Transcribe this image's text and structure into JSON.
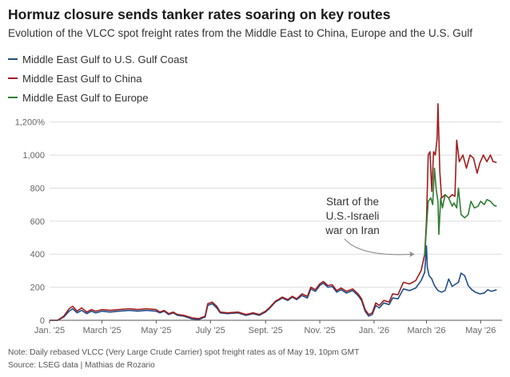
{
  "title": "Hormuz closure sends tanker rates soaring on key routes",
  "subtitle": "Evolution of the VLCC spot freight rates from the Middle East to China, Europe and the U.S. Gulf",
  "note": "Note: Daily rebased VLCC (Very Large Crude Carrier) spot freight rates as of May 19, 10pm GMT",
  "source": "Source: LSEG data | Mathias de Rozario",
  "colors": {
    "us": "#1f4e8c",
    "china": "#a01c1c",
    "europe": "#2e7d32",
    "grid": "#dddddd",
    "axis": "#555555",
    "annotation": "#888888"
  },
  "chart_data": {
    "type": "line",
    "title": "Hormuz closure sends tanker rates soaring on key routes",
    "ylabel": "",
    "xlabel": "",
    "ylim": [
      0,
      1300
    ],
    "xlim": [
      "2025-01-01",
      "2026-05-25"
    ],
    "grid": true,
    "legend_position": "top-left",
    "y_ticks": [
      {
        "value": 0,
        "label": "0"
      },
      {
        "value": 200,
        "label": "200"
      },
      {
        "value": 400,
        "label": "400"
      },
      {
        "value": 600,
        "label": "600"
      },
      {
        "value": 800,
        "label": "800"
      },
      {
        "value": 1000,
        "label": "1,000"
      },
      {
        "value": 1200,
        "label": "1,200%"
      }
    ],
    "x_ticks": [
      {
        "date": "2025-01-01",
        "label": "Jan. '25"
      },
      {
        "date": "2025-03-01",
        "label": "March '25"
      },
      {
        "date": "2025-05-01",
        "label": "May '25"
      },
      {
        "date": "2025-07-01",
        "label": "July '25"
      },
      {
        "date": "2025-09-01",
        "label": "Sept. '25"
      },
      {
        "date": "2025-11-01",
        "label": "Nov. '25"
      },
      {
        "date": "2026-01-01",
        "label": "Jan. '26"
      },
      {
        "date": "2026-03-01",
        "label": "March '26"
      },
      {
        "date": "2026-05-01",
        "label": "May '26"
      }
    ],
    "annotation": {
      "lines": [
        "Start of the",
        "U.S.-Israeli",
        "war on Iran"
      ],
      "date": "2026-02-28",
      "value": 400
    },
    "series": [
      {
        "name": "Middle East Gulf to U.S. Gulf Coast",
        "key": "us",
        "points": [
          [
            "2025-01-01",
            0
          ],
          [
            "2025-01-10",
            0
          ],
          [
            "2025-01-17",
            20
          ],
          [
            "2025-01-23",
            55
          ],
          [
            "2025-01-27",
            70
          ],
          [
            "2025-02-01",
            45
          ],
          [
            "2025-02-06",
            60
          ],
          [
            "2025-02-12",
            40
          ],
          [
            "2025-02-17",
            55
          ],
          [
            "2025-02-22",
            45
          ],
          [
            "2025-03-01",
            55
          ],
          [
            "2025-03-10",
            50
          ],
          [
            "2025-03-20",
            55
          ],
          [
            "2025-04-01",
            60
          ],
          [
            "2025-04-10",
            55
          ],
          [
            "2025-04-20",
            60
          ],
          [
            "2025-05-01",
            55
          ],
          [
            "2025-05-05",
            45
          ],
          [
            "2025-05-10",
            55
          ],
          [
            "2025-05-15",
            35
          ],
          [
            "2025-05-20",
            45
          ],
          [
            "2025-05-25",
            30
          ],
          [
            "2025-06-01",
            25
          ],
          [
            "2025-06-10",
            8
          ],
          [
            "2025-06-18",
            5
          ],
          [
            "2025-06-25",
            20
          ],
          [
            "2025-06-28",
            90
          ],
          [
            "2025-07-03",
            100
          ],
          [
            "2025-07-08",
            75
          ],
          [
            "2025-07-12",
            45
          ],
          [
            "2025-07-20",
            40
          ],
          [
            "2025-08-01",
            45
          ],
          [
            "2025-08-10",
            30
          ],
          [
            "2025-08-18",
            40
          ],
          [
            "2025-08-25",
            30
          ],
          [
            "2025-09-01",
            50
          ],
          [
            "2025-09-06",
            75
          ],
          [
            "2025-09-12",
            110
          ],
          [
            "2025-09-20",
            135
          ],
          [
            "2025-09-26",
            120
          ],
          [
            "2025-10-01",
            140
          ],
          [
            "2025-10-06",
            125
          ],
          [
            "2025-10-12",
            150
          ],
          [
            "2025-10-18",
            135
          ],
          [
            "2025-10-22",
            190
          ],
          [
            "2025-10-27",
            175
          ],
          [
            "2025-11-01",
            210
          ],
          [
            "2025-11-05",
            225
          ],
          [
            "2025-11-10",
            200
          ],
          [
            "2025-11-15",
            205
          ],
          [
            "2025-11-20",
            170
          ],
          [
            "2025-11-25",
            185
          ],
          [
            "2025-12-01",
            165
          ],
          [
            "2025-12-08",
            180
          ],
          [
            "2025-12-14",
            150
          ],
          [
            "2025-12-18",
            120
          ],
          [
            "2025-12-22",
            55
          ],
          [
            "2025-12-26",
            25
          ],
          [
            "2025-12-30",
            35
          ],
          [
            "2026-01-03",
            90
          ],
          [
            "2026-01-07",
            75
          ],
          [
            "2026-01-12",
            105
          ],
          [
            "2026-01-18",
            95
          ],
          [
            "2026-01-22",
            135
          ],
          [
            "2026-01-28",
            130
          ],
          [
            "2026-02-03",
            190
          ],
          [
            "2026-02-10",
            180
          ],
          [
            "2026-02-17",
            195
          ],
          [
            "2026-02-23",
            240
          ],
          [
            "2026-02-27",
            290
          ],
          [
            "2026-03-01",
            450
          ],
          [
            "2026-03-02",
            320
          ],
          [
            "2026-03-04",
            270
          ],
          [
            "2026-03-07",
            250
          ],
          [
            "2026-03-10",
            210
          ],
          [
            "2026-03-14",
            180
          ],
          [
            "2026-03-18",
            170
          ],
          [
            "2026-03-22",
            180
          ],
          [
            "2026-03-26",
            250
          ],
          [
            "2026-03-30",
            205
          ],
          [
            "2026-04-03",
            220
          ],
          [
            "2026-04-06",
            230
          ],
          [
            "2026-04-09",
            285
          ],
          [
            "2026-04-13",
            270
          ],
          [
            "2026-04-17",
            210
          ],
          [
            "2026-04-21",
            185
          ],
          [
            "2026-04-25",
            170
          ],
          [
            "2026-04-30",
            160
          ],
          [
            "2026-05-05",
            165
          ],
          [
            "2026-05-09",
            185
          ],
          [
            "2026-05-13",
            175
          ],
          [
            "2026-05-19",
            185
          ]
        ]
      },
      {
        "name": "Middle East Gulf to China",
        "key": "china",
        "points": [
          [
            "2025-01-01",
            0
          ],
          [
            "2025-01-10",
            0
          ],
          [
            "2025-01-17",
            25
          ],
          [
            "2025-01-23",
            70
          ],
          [
            "2025-01-27",
            85
          ],
          [
            "2025-02-01",
            55
          ],
          [
            "2025-02-06",
            75
          ],
          [
            "2025-02-12",
            50
          ],
          [
            "2025-02-17",
            65
          ],
          [
            "2025-02-22",
            55
          ],
          [
            "2025-03-01",
            65
          ],
          [
            "2025-03-10",
            60
          ],
          [
            "2025-03-20",
            65
          ],
          [
            "2025-04-01",
            70
          ],
          [
            "2025-04-10",
            65
          ],
          [
            "2025-04-20",
            70
          ],
          [
            "2025-05-01",
            65
          ],
          [
            "2025-05-05",
            50
          ],
          [
            "2025-05-10",
            60
          ],
          [
            "2025-05-15",
            40
          ],
          [
            "2025-05-20",
            50
          ],
          [
            "2025-05-25",
            35
          ],
          [
            "2025-06-01",
            30
          ],
          [
            "2025-06-10",
            15
          ],
          [
            "2025-06-18",
            10
          ],
          [
            "2025-06-25",
            25
          ],
          [
            "2025-06-28",
            100
          ],
          [
            "2025-07-03",
            110
          ],
          [
            "2025-07-08",
            85
          ],
          [
            "2025-07-12",
            50
          ],
          [
            "2025-07-20",
            45
          ],
          [
            "2025-08-01",
            50
          ],
          [
            "2025-08-10",
            35
          ],
          [
            "2025-08-18",
            45
          ],
          [
            "2025-08-25",
            35
          ],
          [
            "2025-09-01",
            55
          ],
          [
            "2025-09-06",
            80
          ],
          [
            "2025-09-12",
            115
          ],
          [
            "2025-09-20",
            140
          ],
          [
            "2025-09-26",
            125
          ],
          [
            "2025-10-01",
            145
          ],
          [
            "2025-10-06",
            130
          ],
          [
            "2025-10-12",
            160
          ],
          [
            "2025-10-18",
            145
          ],
          [
            "2025-10-22",
            200
          ],
          [
            "2025-10-27",
            185
          ],
          [
            "2025-11-01",
            220
          ],
          [
            "2025-11-05",
            235
          ],
          [
            "2025-11-10",
            210
          ],
          [
            "2025-11-15",
            215
          ],
          [
            "2025-11-20",
            180
          ],
          [
            "2025-11-25",
            195
          ],
          [
            "2025-12-01",
            175
          ],
          [
            "2025-12-08",
            190
          ],
          [
            "2025-12-14",
            160
          ],
          [
            "2025-12-18",
            130
          ],
          [
            "2025-12-22",
            65
          ],
          [
            "2025-12-26",
            35
          ],
          [
            "2025-12-30",
            45
          ],
          [
            "2026-01-03",
            105
          ],
          [
            "2026-01-07",
            90
          ],
          [
            "2026-01-12",
            120
          ],
          [
            "2026-01-18",
            110
          ],
          [
            "2026-01-22",
            160
          ],
          [
            "2026-01-28",
            155
          ],
          [
            "2026-02-03",
            230
          ],
          [
            "2026-02-10",
            220
          ],
          [
            "2026-02-17",
            240
          ],
          [
            "2026-02-23",
            300
          ],
          [
            "2026-02-27",
            400
          ],
          [
            "2026-03-01",
            600
          ],
          [
            "2026-03-03",
            1000
          ],
          [
            "2026-03-05",
            1020
          ],
          [
            "2026-03-07",
            780
          ],
          [
            "2026-03-09",
            1020
          ],
          [
            "2026-03-11",
            1000
          ],
          [
            "2026-03-13",
            1100
          ],
          [
            "2026-03-14",
            1310
          ],
          [
            "2026-03-16",
            900
          ],
          [
            "2026-03-18",
            740
          ],
          [
            "2026-03-22",
            760
          ],
          [
            "2026-03-26",
            740
          ],
          [
            "2026-03-30",
            760
          ],
          [
            "2026-04-02",
            750
          ],
          [
            "2026-04-04",
            1090
          ],
          [
            "2026-04-07",
            960
          ],
          [
            "2026-04-11",
            1000
          ],
          [
            "2026-04-15",
            920
          ],
          [
            "2026-04-19",
            1000
          ],
          [
            "2026-04-23",
            980
          ],
          [
            "2026-04-27",
            890
          ],
          [
            "2026-04-30",
            950
          ],
          [
            "2026-05-04",
            1000
          ],
          [
            "2026-05-08",
            960
          ],
          [
            "2026-05-12",
            1000
          ],
          [
            "2026-05-15",
            960
          ],
          [
            "2026-05-19",
            955
          ]
        ]
      },
      {
        "name": "Middle East Gulf to Europe",
        "key": "europe",
        "points": [
          [
            "2026-02-27",
            390
          ],
          [
            "2026-03-01",
            560
          ],
          [
            "2026-03-03",
            720
          ],
          [
            "2026-03-06",
            740
          ],
          [
            "2026-03-08",
            700
          ],
          [
            "2026-03-10",
            920
          ],
          [
            "2026-03-12",
            790
          ],
          [
            "2026-03-14",
            720
          ],
          [
            "2026-03-15",
            520
          ],
          [
            "2026-03-17",
            740
          ],
          [
            "2026-03-19",
            680
          ],
          [
            "2026-03-22",
            760
          ],
          [
            "2026-03-26",
            740
          ],
          [
            "2026-03-30",
            690
          ],
          [
            "2026-04-01",
            710
          ],
          [
            "2026-04-04",
            680
          ],
          [
            "2026-04-06",
            800
          ],
          [
            "2026-04-09",
            640
          ],
          [
            "2026-04-13",
            620
          ],
          [
            "2026-04-17",
            640
          ],
          [
            "2026-04-20",
            720
          ],
          [
            "2026-04-24",
            680
          ],
          [
            "2026-04-28",
            690
          ],
          [
            "2026-05-01",
            720
          ],
          [
            "2026-05-05",
            700
          ],
          [
            "2026-05-08",
            730
          ],
          [
            "2026-05-12",
            720
          ],
          [
            "2026-05-16",
            695
          ],
          [
            "2026-05-19",
            690
          ]
        ]
      }
    ]
  }
}
